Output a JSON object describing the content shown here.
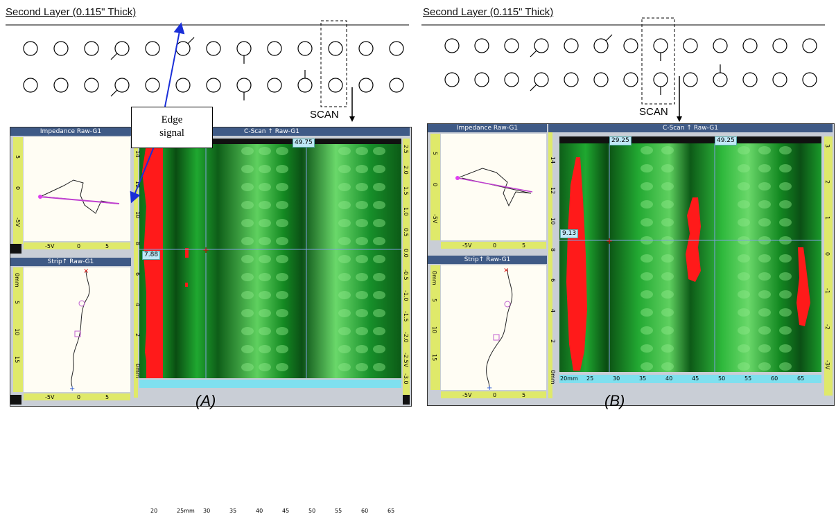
{
  "colors": {
    "panel_header": "#3f5a86",
    "ruler": "#dfe96a",
    "cscan_green": "#1f9a2a",
    "defect_red": "#ff1a1a",
    "cursor": "#7fa0e0",
    "arrow": "#1a2fd8"
  },
  "left": {
    "layer_title": "Second Layer (0.115\" Thick)",
    "scan_label": "SCAN",
    "callout": {
      "line1": "Edge",
      "line2": "signal"
    },
    "impedance_title": "Impedance Raw-G1",
    "strip_title": "Strip↑ Raw-G1",
    "cscan_title": "C-Scan ↑ Raw-G1",
    "cursor_x_tags": [
      "49.75"
    ],
    "cursor_y_tag": "7.88",
    "x_ticks": [
      "20",
      "25mm",
      "30",
      "35",
      "40",
      "45",
      "50",
      "55",
      "60",
      "65"
    ],
    "y_ticks": [
      "14",
      "12",
      "10",
      "8",
      "6",
      "4",
      "2",
      "0mm"
    ],
    "right_ticks": [
      "2.5",
      "2.0",
      "1.5",
      "1.0",
      "0.5",
      "0.0",
      "-0.5",
      "-1.0",
      "-1.5",
      "-2.0",
      "-2.5V",
      "-3.0"
    ],
    "imp_x_ticks": [
      "-5V",
      "0",
      "5"
    ],
    "imp_y_ticks": [
      "5",
      "0",
      "-5V"
    ],
    "strip_x_ticks": [
      "-5V",
      "0",
      "5"
    ],
    "strip_y_ticks": [
      "0mm",
      "5",
      "10",
      "15"
    ],
    "caption": "(A)"
  },
  "right": {
    "layer_title": "Second Layer (0.115\" Thick)",
    "scan_label": "SCAN",
    "impedance_title": "Impedance Raw-G1",
    "strip_title": "Strip↑ Raw-G1",
    "cscan_title": "C-Scan ↑ Raw-G1",
    "cursor_x_tags": [
      "29.25",
      "49.25"
    ],
    "cursor_y_tag": "9.13",
    "x_ticks": [
      "20mm",
      "25",
      "30",
      "35",
      "40",
      "45",
      "50",
      "55",
      "60",
      "65"
    ],
    "y_ticks": [
      "14",
      "12",
      "10",
      "8",
      "6",
      "4",
      "2",
      "0mm"
    ],
    "right_ticks": [
      "3",
      "2",
      "1",
      "0",
      "-1",
      "-2",
      "-3V"
    ],
    "imp_x_ticks": [
      "-5V",
      "0",
      "5"
    ],
    "imp_y_ticks": [
      "5",
      "0",
      "-5V"
    ],
    "strip_x_ticks": [
      "-5V",
      "0",
      "5"
    ],
    "strip_y_ticks": [
      "0mm",
      "5",
      "10",
      "15"
    ],
    "caption": "(B)"
  }
}
